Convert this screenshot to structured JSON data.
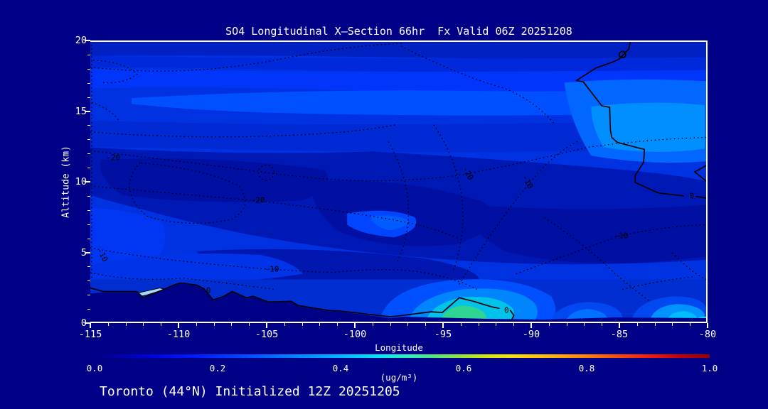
{
  "palette": {
    "background": "#000087",
    "frame": "#FFFFFF",
    "text": "#FFFFFF",
    "contour_line": "#000000",
    "colorbar_stops": [
      "#000085",
      "#0018FF",
      "#0080FF",
      "#00E8F0",
      "#50E878",
      "#D8E800",
      "#FFB800",
      "#FF8000",
      "#FF4000",
      "#C80000",
      "#940000"
    ]
  },
  "chart_data": {
    "type": "heatmap",
    "title": "SO4 Longitudinal X—Section 66hr  Fx Valid 06Z 20251208",
    "subtitle": "Toronto (44°N) Initialized 12Z 20251205",
    "xlabel": "Longitude",
    "ylabel": "Altitude (km)",
    "xlim": [
      -115,
      -80
    ],
    "ylim": [
      0,
      20
    ],
    "x_ticks": [
      -115,
      -110,
      -105,
      -100,
      -95,
      -90,
      -85,
      -80
    ],
    "x_minor_step": 1,
    "y_ticks": [
      0,
      5,
      10,
      15,
      20
    ],
    "y_minor_step": 1,
    "grid": false,
    "legend_position": "none",
    "colorbar": {
      "label": "(ug/m³)",
      "min": 0.0,
      "max": 1.0,
      "ticks": [
        "0.0",
        "0.2",
        "0.4",
        "0.6",
        "0.8",
        "1.0"
      ]
    },
    "so4_fill_grid": {
      "units": "ug/m3",
      "longitudes": [
        -115,
        -110,
        -105,
        -100,
        -95,
        -90,
        -85,
        -80
      ],
      "altitudes_km": [
        0,
        2,
        4,
        6,
        8,
        10,
        12,
        14,
        16,
        18,
        20
      ],
      "values_by_altitude": [
        [
          0.1,
          0.1,
          0.12,
          0.15,
          0.45,
          0.2,
          0.25,
          0.2
        ],
        [
          0.15,
          0.12,
          0.12,
          0.1,
          0.2,
          0.15,
          0.15,
          0.18
        ],
        [
          0.2,
          0.15,
          0.1,
          0.1,
          0.08,
          0.1,
          0.1,
          0.12
        ],
        [
          0.15,
          0.1,
          0.08,
          0.05,
          0.05,
          0.08,
          0.1,
          0.1
        ],
        [
          0.1,
          0.05,
          0.05,
          0.08,
          0.05,
          0.05,
          0.1,
          0.12
        ],
        [
          0.1,
          0.08,
          0.08,
          0.1,
          0.12,
          0.15,
          0.25,
          0.22
        ],
        [
          0.15,
          0.12,
          0.12,
          0.15,
          0.18,
          0.2,
          0.25,
          0.25
        ],
        [
          0.25,
          0.25,
          0.22,
          0.22,
          0.22,
          0.25,
          0.25,
          0.2
        ],
        [
          0.2,
          0.2,
          0.2,
          0.2,
          0.2,
          0.2,
          0.2,
          0.2
        ],
        [
          0.2,
          0.2,
          0.2,
          0.2,
          0.2,
          0.2,
          0.18,
          0.18
        ],
        [
          0.15,
          0.15,
          0.15,
          0.15,
          0.15,
          0.15,
          0.15,
          0.15
        ]
      ],
      "surface_maximum": {
        "lon": -94.2,
        "alt_km": 0.5,
        "value": 0.45
      }
    },
    "overlay_contour_labels": [
      {
        "value": "-20",
        "lon": -113.7,
        "alt_km": 11.7,
        "rot": 0
      },
      {
        "value": "-20",
        "lon": -105.5,
        "alt_km": 8.7,
        "rot": 0
      },
      {
        "value": "-20",
        "lon": -93.6,
        "alt_km": 10.6,
        "rot": 62
      },
      {
        "value": "-10",
        "lon": -114.3,
        "alt_km": 4.8,
        "rot": 62
      },
      {
        "value": "-10",
        "lon": -104.7,
        "alt_km": 3.8,
        "rot": 0
      },
      {
        "value": "-10",
        "lon": -90.2,
        "alt_km": 10.0,
        "rot": 62
      },
      {
        "value": "-10",
        "lon": -84.9,
        "alt_km": 6.2,
        "rot": 0
      },
      {
        "value": "0",
        "lon": -80.9,
        "alt_km": 9.0,
        "rot": 0
      },
      {
        "value": "0",
        "lon": -91.4,
        "alt_km": 0.9,
        "rot": 0
      },
      {
        "value": "0",
        "lon": -108.3,
        "alt_km": 2.3,
        "rot": 0
      }
    ]
  }
}
